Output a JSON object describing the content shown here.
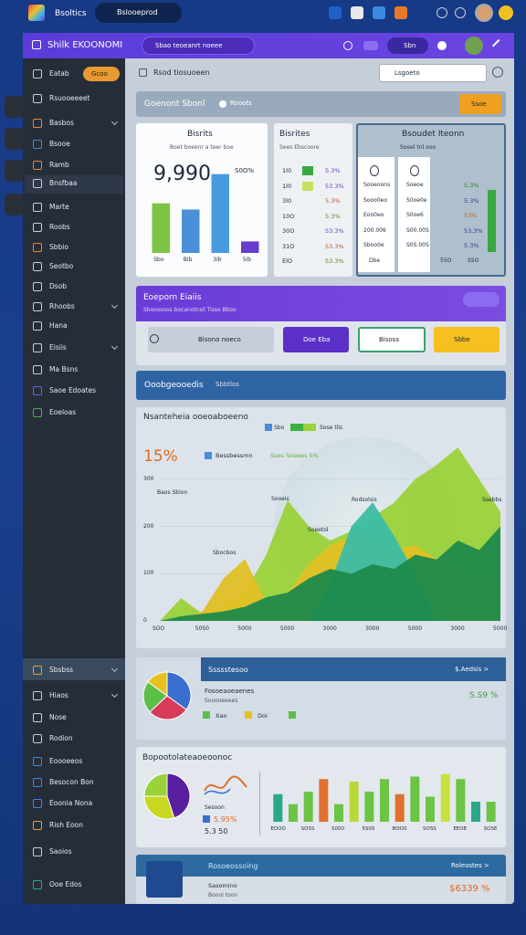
{
  "topbar": {
    "app": "Bsoltics",
    "search": "Bslooeprod"
  },
  "window": {
    "title": "Shilk EKOONOMI",
    "search": "Sbao teoeanrt noeee",
    "button": "Sbn"
  },
  "sidebar": {
    "badge": "Gcoo",
    "items": [
      "Eatab",
      "Rsuooeeeet",
      "Basbos",
      "Bsooe",
      "Ramb",
      "Bnsfbaa",
      "Marte",
      "Roobs",
      "Sbbio",
      "Seotbo",
      "Dsob",
      "Rhoobs",
      "Hana",
      "Eisiis",
      "Ma Bsns",
      "Saoe Edoates",
      "Eoeloas"
    ],
    "items2": [
      "Sbsbss",
      "Hiaos",
      "Nose",
      "Rodion",
      "Eoooeeos",
      "Besocon Bon",
      "Eoonia Nona",
      "Rish Eoon",
      "Saoios",
      "Ooe Edos"
    ]
  },
  "toolbar": {
    "label": "Rsod tiosuoeen",
    "select": "Lsgoeto"
  },
  "banner": {
    "title": "Goenont Sbonl",
    "tag": "Rooots",
    "button": "Ssoe"
  },
  "card1": {
    "title": "Bisrits",
    "subtitle": "Boet boeenr a teer boe",
    "kpi": "9,990",
    "note": "S0O%",
    "chart": {
      "type": "bar",
      "categories": [
        "Sbo",
        "Bib",
        "3ib",
        "5ib"
      ],
      "values": [
        56,
        49,
        89,
        13
      ],
      "colors": [
        "#7cc444",
        "#4a8fd8",
        "#4a9ae0",
        "#6a3ccc"
      ],
      "ylim": [
        0,
        100
      ]
    }
  },
  "card2": {
    "title": "Bisrites",
    "subtitle": "Sees Ebscoore",
    "rows": [
      [
        "1l0",
        "5.3%"
      ],
      [
        "1l0",
        "53.3%"
      ],
      [
        "3l0",
        "5.3%"
      ],
      [
        "10O",
        "5.3%"
      ],
      [
        "30O",
        "53.3%"
      ],
      [
        "31O",
        "53.3%"
      ],
      [
        "ElO",
        "53.3%"
      ]
    ]
  },
  "card3": {
    "title": "Bsoudet Iteonn",
    "subtitle": "Soeel tnl ooo",
    "rows": [
      [
        "Sooeoons",
        "Soeoe",
        "5.3%"
      ],
      [
        "Sooo0eo",
        "S0oe0e",
        "5.3%"
      ],
      [
        "Eoo0eo",
        "S0oe6",
        "53%"
      ],
      [
        "200.006",
        "S00.00S",
        "53.3%"
      ],
      [
        "Sboo0e",
        "S0S.00S",
        "5.3%"
      ]
    ],
    "footer": [
      "Dbe",
      "55O",
      "SSO"
    ]
  },
  "cta": {
    "title": "Eoeporn Eiaiis",
    "subtitle": "Sboossoos bocanotnot Tisso Bboo",
    "buttons": [
      "Bisono noeco",
      "Doe Eba",
      "Bisoss",
      "Sbbe"
    ]
  },
  "section": {
    "title": "Ooobgeooedis",
    "tag": "Sbbtlos"
  },
  "area": {
    "title": "Nsanteheia ooeoaboeeno",
    "legend": [
      "Sbo",
      "Sose tlis"
    ],
    "kpi": "15%",
    "kpi_label": "Bessbessmn",
    "kpi_note": "Sses Soeees 5%",
    "annotations": [
      "Baos Sbion",
      "Sooeis",
      "Sbocbos",
      "Soeetol",
      "Rodsolsis",
      "Ssebbs"
    ],
    "chart": {
      "type": "area",
      "categories": [
        "SOO",
        null,
        "50S0",
        null,
        "5000",
        null,
        "5000",
        null,
        "3000",
        null,
        "3000",
        null,
        "5000",
        null,
        "3000",
        null,
        "5000"
      ],
      "series": [
        {
          "color": "#9ad23a",
          "values": [
            0,
            48,
            15,
            30,
            60,
            140,
            255,
            200,
            170,
            190,
            220,
            250,
            300,
            330,
            367,
            300,
            230
          ]
        },
        {
          "color": "#e0c024",
          "values": [
            0,
            5,
            20,
            90,
            131,
            40,
            60,
            120,
            160,
            180,
            170,
            150,
            160,
            130,
            100,
            90,
            80
          ]
        },
        {
          "color": "#3cbca4",
          "values": [
            0,
            0,
            0,
            0,
            0,
            0,
            0,
            0,
            80,
            200,
            251,
            180,
            100,
            0,
            0,
            0,
            0
          ]
        },
        {
          "color": "#1f8a4c",
          "values": [
            0,
            10,
            15,
            20,
            30,
            50,
            60,
            90,
            110,
            100,
            120,
            110,
            140,
            130,
            170,
            150,
            200
          ]
        }
      ],
      "ylim": [
        0,
        400
      ],
      "yticks": [
        0,
        100,
        200,
        300
      ]
    }
  },
  "pie": {
    "header": "Ssssstesoo",
    "link": "$.Aedsis >",
    "title": "Fosoeaoeaenes",
    "subtitle": "Sooooeeees",
    "value": "S.S9 %",
    "legend": [
      "Xan",
      "Doi"
    ],
    "chart": {
      "type": "pie",
      "values": [
        35,
        28,
        22,
        15
      ],
      "colors": [
        "#3a6fd0",
        "#d83a5a",
        "#5cbf4a",
        "#e8c020"
      ]
    }
  },
  "bottom": {
    "title": "Bopootolateaoeoonoc",
    "legend_label": "Sesoon",
    "value": "5.95%",
    "value2": "5.3 50",
    "pie": {
      "type": "pie",
      "values": [
        45,
        30,
        25
      ],
      "colors": [
        "#5a1ea0",
        "#c8d820",
        "#9ad23a"
      ]
    },
    "bars": {
      "type": "bar",
      "categories": [
        "EOOO",
        null,
        "SOSS",
        null,
        "S000",
        null,
        "5S0S",
        null,
        "BOOS",
        null,
        "SOSS",
        null,
        "EEOE",
        null,
        "SOSE"
      ],
      "values": [
        55,
        35,
        60,
        85,
        35,
        80,
        60,
        85,
        55,
        90,
        50,
        95,
        85,
        40,
        40
      ],
      "colors": [
        "#2aa88a",
        "#6cc444",
        "#6cc444",
        "#e07030",
        "#6cc444",
        "#b8d838",
        "#6cc444",
        "#6cc444",
        "#e07030",
        "#6cc444",
        "#6cc444",
        "#c8e040",
        "#6cc444",
        "#2aa88a",
        "#6cc444"
      ],
      "ylim": [
        0,
        100
      ]
    }
  },
  "footer_card": {
    "title": "Rosoeossoing",
    "link": "Roleostes >",
    "subtitle": "Sasomino",
    "note": "Boool toon",
    "value": "$6339 %"
  }
}
